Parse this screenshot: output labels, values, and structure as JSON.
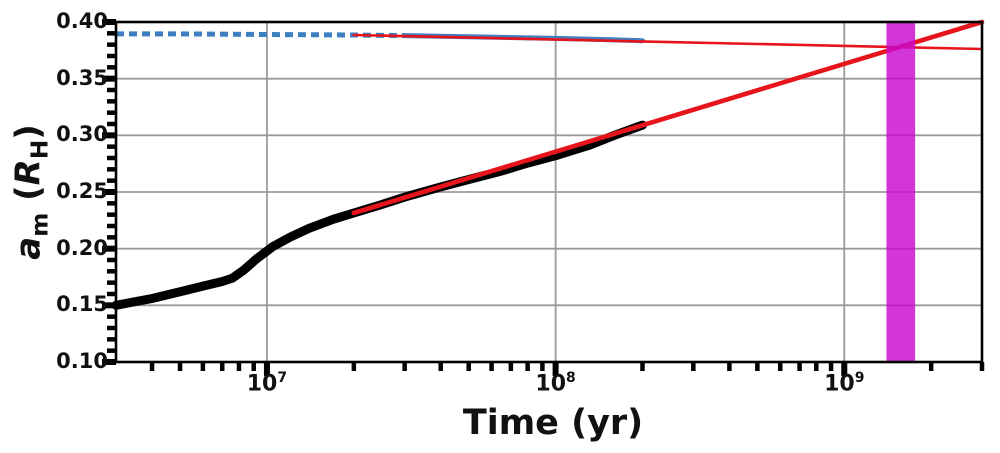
{
  "figure": {
    "background": "#ffffff",
    "text_color": "#111111",
    "spine_color": "#000000",
    "grid_color": "#9b9b9b"
  },
  "chart_data": {
    "type": "line",
    "title": "",
    "xlabel": "Time (yr)",
    "ylabel_parts": {
      "var": "a",
      "var_sub": "m",
      "open": " (",
      "unit": "R",
      "unit_sub": "H",
      "close": ")"
    },
    "x_scale": "log",
    "xlim": [
      3000000.0,
      3000000000.0
    ],
    "ylim": [
      0.1,
      0.4
    ],
    "grid": "major-both-axes",
    "legend": "none",
    "x_ticks": [
      {
        "value": 10000000.0,
        "base": "10",
        "exp": "7"
      },
      {
        "value": 100000000.0,
        "base": "10",
        "exp": "8"
      },
      {
        "value": 1000000000.0,
        "base": "10",
        "exp": "9"
      }
    ],
    "x_minor_ticks": [
      4000000.0,
      5000000.0,
      6000000.0,
      7000000.0,
      8000000.0,
      9000000.0,
      20000000.0,
      30000000.0,
      40000000.0,
      50000000.0,
      60000000.0,
      70000000.0,
      80000000.0,
      90000000.0,
      200000000.0,
      300000000.0,
      400000000.0,
      500000000.0,
      600000000.0,
      700000000.0,
      800000000.0,
      900000000.0,
      2000000000.0,
      3000000000.0
    ],
    "y_ticks": [
      {
        "value": 0.4,
        "label": "0.40"
      },
      {
        "value": 0.35,
        "label": "0.35"
      },
      {
        "value": 0.3,
        "label": "0.30"
      },
      {
        "value": 0.25,
        "label": "0.25"
      },
      {
        "value": 0.2,
        "label": "0.20"
      },
      {
        "value": 0.15,
        "label": "0.15"
      },
      {
        "value": 0.1,
        "label": "0.10"
      }
    ],
    "y_minor_ticks": [
      0.11,
      0.12,
      0.13,
      0.14,
      0.16,
      0.17,
      0.18,
      0.19,
      0.21,
      0.22,
      0.23,
      0.24,
      0.26,
      0.27,
      0.28,
      0.29,
      0.31,
      0.32,
      0.33,
      0.34,
      0.36,
      0.37,
      0.38,
      0.39
    ],
    "series": [
      {
        "name": "outer-curve-simulation-dashed",
        "color": "#3e7fc1",
        "width": 5,
        "dash": "8 5",
        "cap": "butt",
        "points": [
          [
            3000000.0,
            0.3895
          ],
          [
            5000000.0,
            0.3895
          ],
          [
            10000000.0,
            0.389
          ],
          [
            20000000.0,
            0.3885
          ],
          [
            30000000.0,
            0.388
          ]
        ]
      },
      {
        "name": "outer-curve-simulation-solid",
        "color": "#3e7fc1",
        "width": 5,
        "dash": null,
        "cap": "round",
        "points": [
          [
            30000000.0,
            0.388
          ],
          [
            50000000.0,
            0.387
          ],
          [
            100000000.0,
            0.3855
          ],
          [
            150000000.0,
            0.3845
          ],
          [
            200000000.0,
            0.3835
          ]
        ]
      },
      {
        "name": "inner-moon-simulation",
        "color": "#000000",
        "width": 9,
        "dash": null,
        "cap": "round",
        "points": [
          [
            3000000.0,
            0.15
          ],
          [
            4000000.0,
            0.156
          ],
          [
            5000000.0,
            0.162
          ],
          [
            6000000.0,
            0.167
          ],
          [
            7000000.0,
            0.171
          ],
          [
            7600000.0,
            0.174
          ],
          [
            8300000.0,
            0.181
          ],
          [
            9200000.0,
            0.191
          ],
          [
            10500000.0,
            0.202
          ],
          [
            12000000.0,
            0.21
          ],
          [
            14000000.0,
            0.218
          ],
          [
            17000000.0,
            0.226
          ],
          [
            20000000.0,
            0.2315
          ],
          [
            25000000.0,
            0.239
          ],
          [
            30000000.0,
            0.2455
          ],
          [
            40000000.0,
            0.2545
          ],
          [
            50000000.0,
            0.261
          ],
          [
            65000000.0,
            0.2685
          ],
          [
            80000000.0,
            0.2755
          ],
          [
            100000000.0,
            0.282
          ],
          [
            130000000.0,
            0.291
          ],
          [
            160000000.0,
            0.3
          ],
          [
            200000000.0,
            0.309
          ]
        ]
      },
      {
        "name": "outer-curve-fit-extrapolation",
        "color": "#e8141c",
        "width": 2.6,
        "dash": null,
        "cap": "round",
        "points": [
          [
            20000000.0,
            0.3885
          ],
          [
            3000000000.0,
            0.3762
          ]
        ]
      },
      {
        "name": "inner-moon-fit-extrapolation",
        "color": "#e8141c",
        "width": 4.6,
        "dash": null,
        "cap": "round",
        "points": [
          [
            20000000.0,
            0.2315
          ],
          [
            3000000000.0,
            0.4
          ]
        ]
      }
    ],
    "band": {
      "name": "crossing-epoch-band",
      "x0": 1400000000.0,
      "x1": 1760000000.0,
      "color": "#c908cf",
      "opacity": 0.82
    }
  }
}
